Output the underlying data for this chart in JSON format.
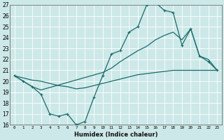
{
  "xlabel": "Humidex (Indice chaleur)",
  "bg_color": "#cde8e8",
  "grid_color": "#b0d4d4",
  "line_color": "#1a6b6b",
  "xlim": [
    -0.5,
    23.5
  ],
  "ylim": [
    16,
    27
  ],
  "xticks": [
    0,
    1,
    2,
    3,
    4,
    5,
    6,
    7,
    8,
    9,
    10,
    11,
    12,
    13,
    14,
    15,
    16,
    17,
    18,
    19,
    20,
    21,
    22,
    23
  ],
  "yticks": [
    16,
    17,
    18,
    19,
    20,
    21,
    22,
    23,
    24,
    25,
    26,
    27
  ],
  "series": [
    {
      "x": [
        0,
        1,
        2,
        3,
        4,
        5,
        6,
        7,
        8,
        9,
        10,
        11,
        12,
        13,
        14,
        15,
        16,
        17,
        18,
        19,
        20,
        21,
        22,
        23
      ],
      "y": [
        20.5,
        20.0,
        19.5,
        18.8,
        17.0,
        16.8,
        17.0,
        16.0,
        16.3,
        18.5,
        20.5,
        22.5,
        22.8,
        24.5,
        25.0,
        27.0,
        27.2,
        26.5,
        26.3,
        23.3,
        24.8,
        22.3,
        21.8,
        21.0
      ],
      "marker": "+",
      "lw": 0.9
    },
    {
      "x": [
        0,
        1,
        2,
        3,
        10,
        11,
        12,
        13,
        14,
        15,
        16,
        17,
        18,
        19,
        20,
        21,
        22,
        23
      ],
      "y": [
        20.5,
        20.0,
        19.5,
        19.2,
        20.8,
        21.2,
        21.8,
        22.3,
        22.8,
        23.2,
        23.8,
        24.2,
        24.5,
        23.8,
        24.8,
        22.3,
        22.0,
        21.0
      ],
      "marker": null,
      "lw": 0.9
    },
    {
      "x": [
        0,
        1,
        2,
        3,
        4,
        5,
        6,
        7,
        8,
        9,
        10,
        11,
        12,
        13,
        14,
        15,
        16,
        17,
        18,
        19,
        20,
        21,
        22,
        23
      ],
      "y": [
        20.5,
        20.3,
        20.1,
        20.0,
        19.8,
        19.6,
        19.5,
        19.3,
        19.4,
        19.6,
        19.8,
        20.0,
        20.2,
        20.4,
        20.6,
        20.7,
        20.8,
        20.9,
        21.0,
        21.0,
        21.0,
        21.0,
        21.0,
        21.0
      ],
      "marker": null,
      "lw": 0.9
    }
  ]
}
